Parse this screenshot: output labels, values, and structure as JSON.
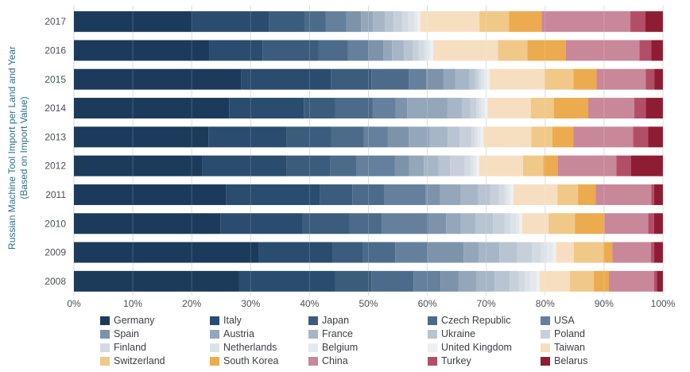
{
  "chart_data": {
    "type": "bar",
    "orientation": "horizontal",
    "stacked": "percent",
    "ylabel": "Russian Machine Tool Import per Land and Year",
    "ylabel_sub": "(Based on Import Value)",
    "xlabel": "",
    "xlim": [
      0,
      100
    ],
    "x_ticks": [
      "0%",
      "10%",
      "20%",
      "30%",
      "40%",
      "50%",
      "60%",
      "70%",
      "80%",
      "90%",
      "100%"
    ],
    "grid": "vertical",
    "legend_position": "bottom",
    "categories": [
      "2017",
      "2016",
      "2015",
      "2014",
      "2013",
      "2012",
      "2011",
      "2010",
      "2009",
      "2008"
    ],
    "series": [
      {
        "name": "Germany",
        "color": "#1c3a5c",
        "values": [
          20.0,
          23.0,
          29.0,
          27.0,
          22.5,
          22.0,
          26.0,
          25.0,
          31.0,
          27.5
        ]
      },
      {
        "name": "Italy",
        "color": "#2a4c6e",
        "values": [
          13.0,
          9.0,
          15.5,
          13.0,
          13.0,
          14.5,
          16.0,
          14.0,
          12.5,
          16.0
        ]
      },
      {
        "name": "Japan",
        "color": "#3b5c7c",
        "values": [
          6.0,
          9.5,
          7.0,
          5.5,
          7.5,
          7.5,
          5.5,
          8.0,
          5.0,
          6.0
        ]
      },
      {
        "name": "Czech Republic",
        "color": "#4c6b8a",
        "values": [
          3.5,
          5.0,
          6.5,
          6.5,
          5.5,
          4.5,
          5.5,
          5.5,
          5.5,
          7.0
        ]
      },
      {
        "name": "USA",
        "color": "#64809c",
        "values": [
          3.5,
          3.5,
          3.0,
          4.0,
          4.0,
          6.5,
          7.0,
          8.0,
          5.5,
          4.5
        ]
      },
      {
        "name": "Spain",
        "color": "#7d93aa",
        "values": [
          2.5,
          2.5,
          3.0,
          2.0,
          3.5,
          2.5,
          2.5,
          3.0,
          6.0,
          3.0
        ]
      },
      {
        "name": "Austria",
        "color": "#94a6ba",
        "values": [
          2.0,
          1.5,
          2.0,
          7.0,
          3.5,
          2.5,
          3.5,
          2.5,
          2.5,
          3.0
        ]
      },
      {
        "name": "France",
        "color": "#a7b6c6",
        "values": [
          2.0,
          2.0,
          2.5,
          2.5,
          3.0,
          2.5,
          3.0,
          2.5,
          3.5,
          3.0
        ]
      },
      {
        "name": "Ukraine",
        "color": "#b8c4d1",
        "values": [
          1.5,
          1.5,
          1.0,
          1.5,
          2.0,
          2.0,
          2.0,
          3.0,
          3.0,
          2.5
        ]
      },
      {
        "name": "Poland",
        "color": "#c7d0da",
        "values": [
          1.5,
          1.0,
          0.5,
          1.0,
          2.0,
          2.5,
          1.5,
          2.0,
          2.5,
          1.5
        ]
      },
      {
        "name": "Finland",
        "color": "#d3dae2",
        "values": [
          1.0,
          1.0,
          0.5,
          0.5,
          0.5,
          1.0,
          1.0,
          1.0,
          1.5,
          1.0
        ]
      },
      {
        "name": "Netherlands",
        "color": "#dde2e8",
        "values": [
          1.0,
          0.5,
          0.5,
          0.5,
          0.5,
          0.5,
          0.5,
          1.0,
          1.0,
          1.0
        ]
      },
      {
        "name": "Belgium",
        "color": "#e5e9ed",
        "values": [
          0.5,
          0.5,
          0.5,
          0.5,
          0.5,
          0.5,
          0.5,
          0.5,
          1.0,
          1.0
        ]
      },
      {
        "name": "United Kingdom",
        "color": "#eef0f2",
        "values": [
          0.5,
          0.5,
          0.5,
          0.5,
          0.5,
          0.5,
          0.5,
          0.5,
          0.5,
          0.5
        ]
      },
      {
        "name": "Taiwan",
        "color": "#f6dfc0",
        "values": [
          10.0,
          11.0,
          9.5,
          7.5,
          8.0,
          7.5,
          7.5,
          4.5,
          3.0,
          5.0
        ]
      },
      {
        "name": "Switzerland",
        "color": "#f0c888",
        "values": [
          5.0,
          5.0,
          5.0,
          4.0,
          3.5,
          3.5,
          3.5,
          4.5,
          5.0,
          4.0
        ]
      },
      {
        "name": "South Korea",
        "color": "#ebab4e",
        "values": [
          5.5,
          6.5,
          4.0,
          6.0,
          3.5,
          2.5,
          3.0,
          5.0,
          1.5,
          2.5
        ]
      },
      {
        "name": "China",
        "color": "#c9879a",
        "values": [
          15.0,
          12.5,
          8.5,
          8.0,
          10.0,
          10.0,
          9.5,
          7.5,
          6.5,
          7.5
        ]
      },
      {
        "name": "Turkey",
        "color": "#b34e68",
        "values": [
          2.5,
          2.0,
          1.5,
          2.0,
          2.5,
          2.5,
          0.5,
          1.0,
          0.5,
          0.5
        ]
      },
      {
        "name": "Belarus",
        "color": "#8e1d33",
        "values": [
          3.0,
          2.0,
          1.5,
          3.0,
          2.5,
          5.5,
          1.5,
          1.5,
          1.5,
          1.0
        ]
      }
    ]
  }
}
